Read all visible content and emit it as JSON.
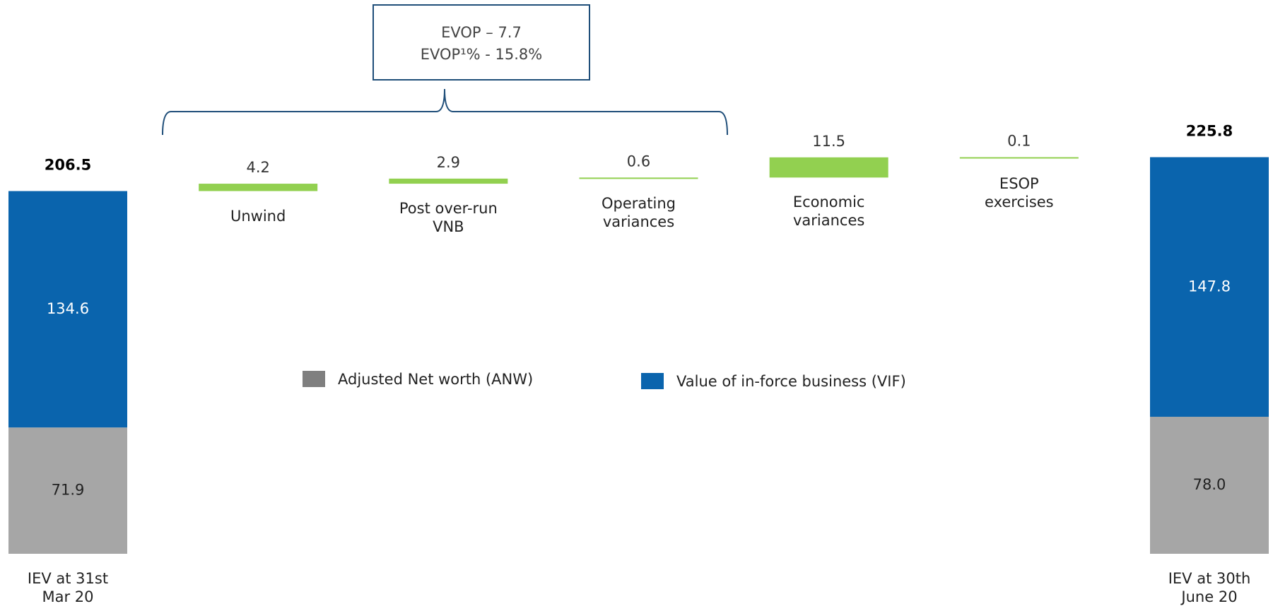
{
  "chart_data": {
    "type": "waterfall",
    "annotation": [
      "EVOP – 7.7",
      "EVOP¹% - 15.8%"
    ],
    "categories": [
      "IEV at 31st Mar 20",
      "Unwind",
      "Post over-run VNB",
      "Operating variances",
      "Economic variances",
      "ESOP exercises",
      "IEV at 30th June 20"
    ],
    "series": [
      {
        "name": "Adjusted Net worth (ANW)",
        "color": "#a6a6a6",
        "legend_color": "#7f7f7f",
        "values": [
          71.9,
          null,
          null,
          null,
          null,
          null,
          78.0
        ],
        "value_labels": [
          null,
          null,
          null,
          null,
          null,
          null,
          "78.0"
        ]
      },
      {
        "name": "Value of in-force business (VIF)",
        "color": "#0a64ad",
        "values": [
          134.6,
          null,
          null,
          null,
          null,
          null,
          147.8
        ]
      }
    ],
    "changes": {
      "color": "#92d050",
      "values": [
        null,
        4.2,
        2.9,
        0.6,
        11.5,
        0.1,
        null
      ]
    },
    "totals": [
      206.5,
      null,
      null,
      null,
      null,
      null,
      225.8
    ],
    "ylim": [
      0,
      300
    ]
  }
}
